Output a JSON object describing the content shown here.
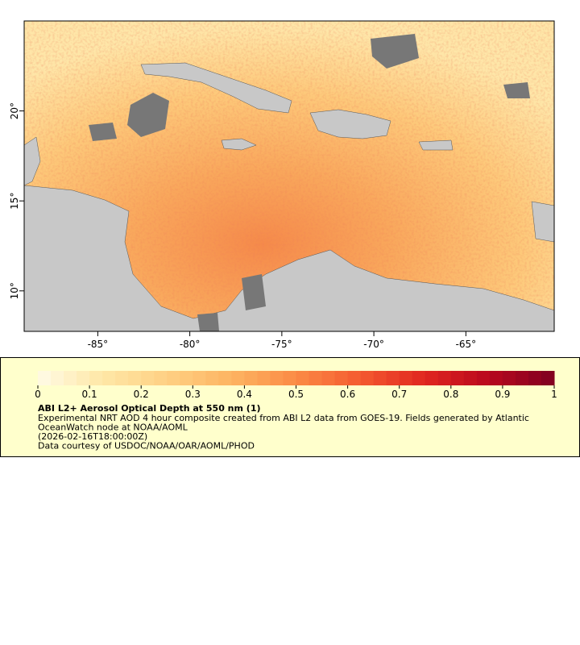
{
  "map": {
    "xlim": [
      -89,
      -60.2
    ],
    "ylim": [
      7.75,
      25
    ],
    "xticks": [
      {
        "value": -85,
        "label": "-85°"
      },
      {
        "value": -80,
        "label": "-80°"
      },
      {
        "value": -75,
        "label": "-75°"
      },
      {
        "value": -70,
        "label": "-70°"
      },
      {
        "value": -65,
        "label": "-65°"
      }
    ],
    "yticks": [
      {
        "value": 10,
        "label": "10°"
      },
      {
        "value": 15,
        "label": "15°"
      },
      {
        "value": 20,
        "label": "20°"
      }
    ]
  },
  "colorbar": {
    "lim": [
      0,
      1
    ],
    "ticks": [
      0,
      0.1,
      0.2,
      0.3,
      0.4,
      0.5,
      0.6,
      0.7,
      0.8,
      0.9,
      1
    ],
    "colors": [
      "#fffbe6",
      "#fee7a6",
      "#fed083",
      "#fdb462",
      "#fb8b45",
      "#f45a30",
      "#e0261f",
      "#b8081e",
      "#7f0020"
    ]
  },
  "legend": {
    "title": "ABI L2+ Aerosol Optical Depth at 550 nm (1)",
    "lines": [
      "Experimental NRT AOD 4 hour composite created from ABI L2 data from GOES-19. Fields generated by Atlantic",
      "OceanWatch node at NOAA/AOML",
      "(2026-02-16T18:00:00Z)",
      "Data courtesy of USDOC/NOAA/OAR/AOML/PHOD"
    ]
  }
}
